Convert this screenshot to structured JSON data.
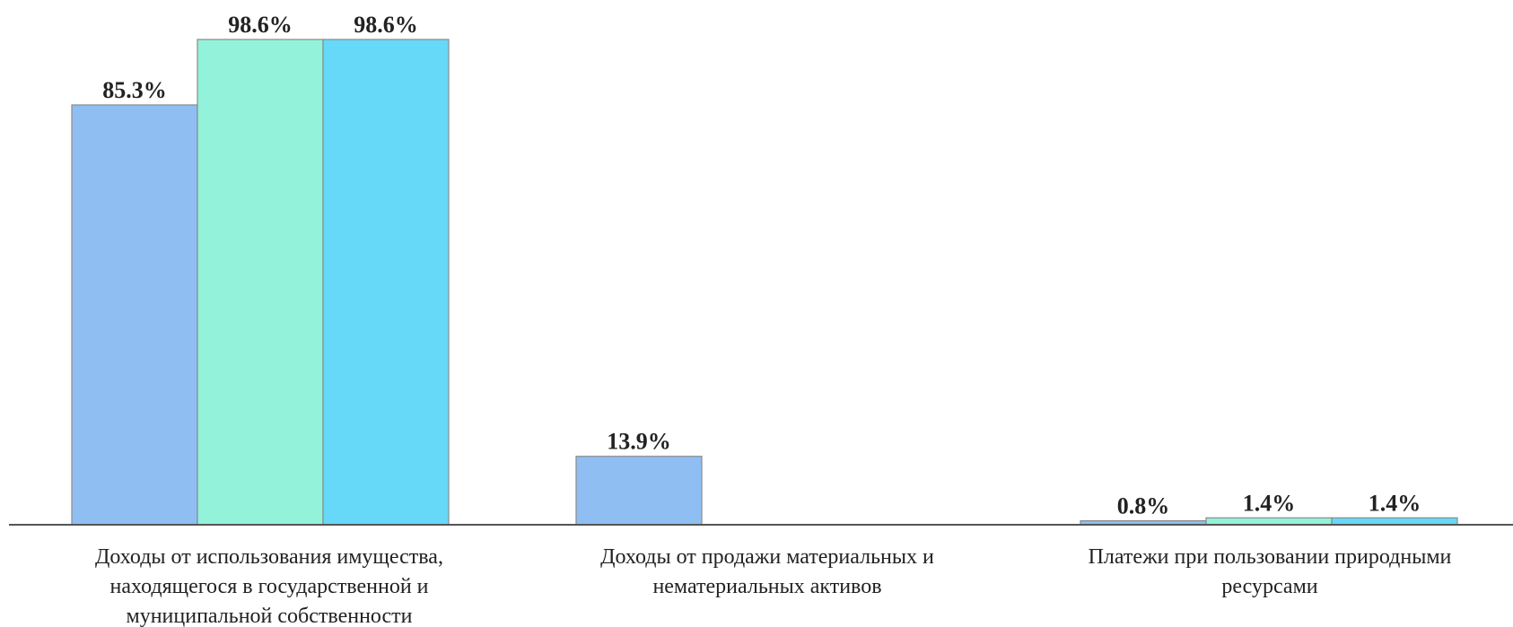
{
  "chart_data": {
    "type": "bar",
    "title": "",
    "xlabel": "",
    "ylabel": "",
    "ylim": [
      0,
      100
    ],
    "grid": false,
    "legend": "none",
    "categories": [
      [
        "Доходы от использования имущества,",
        "находящегося в государственной и",
        "муниципальной собственности"
      ],
      [
        "Доходы от продажи материальных и",
        "нематериальных активов"
      ],
      [
        "Платежи при пользовании природными",
        "ресурсами"
      ]
    ],
    "series": [
      {
        "color": "#8fbff2",
        "values": [
          85.3,
          13.9,
          0.8
        ],
        "labels": [
          "85.3%",
          "13.9%",
          "0.8%"
        ]
      },
      {
        "color": "#93f2da",
        "values": [
          98.6,
          null,
          1.4
        ],
        "labels": [
          "98.6%",
          "",
          "1.4%"
        ]
      },
      {
        "color": "#66d8f8",
        "values": [
          98.6,
          null,
          1.4
        ],
        "labels": [
          "98.6%",
          "",
          "1.4%"
        ]
      }
    ]
  }
}
